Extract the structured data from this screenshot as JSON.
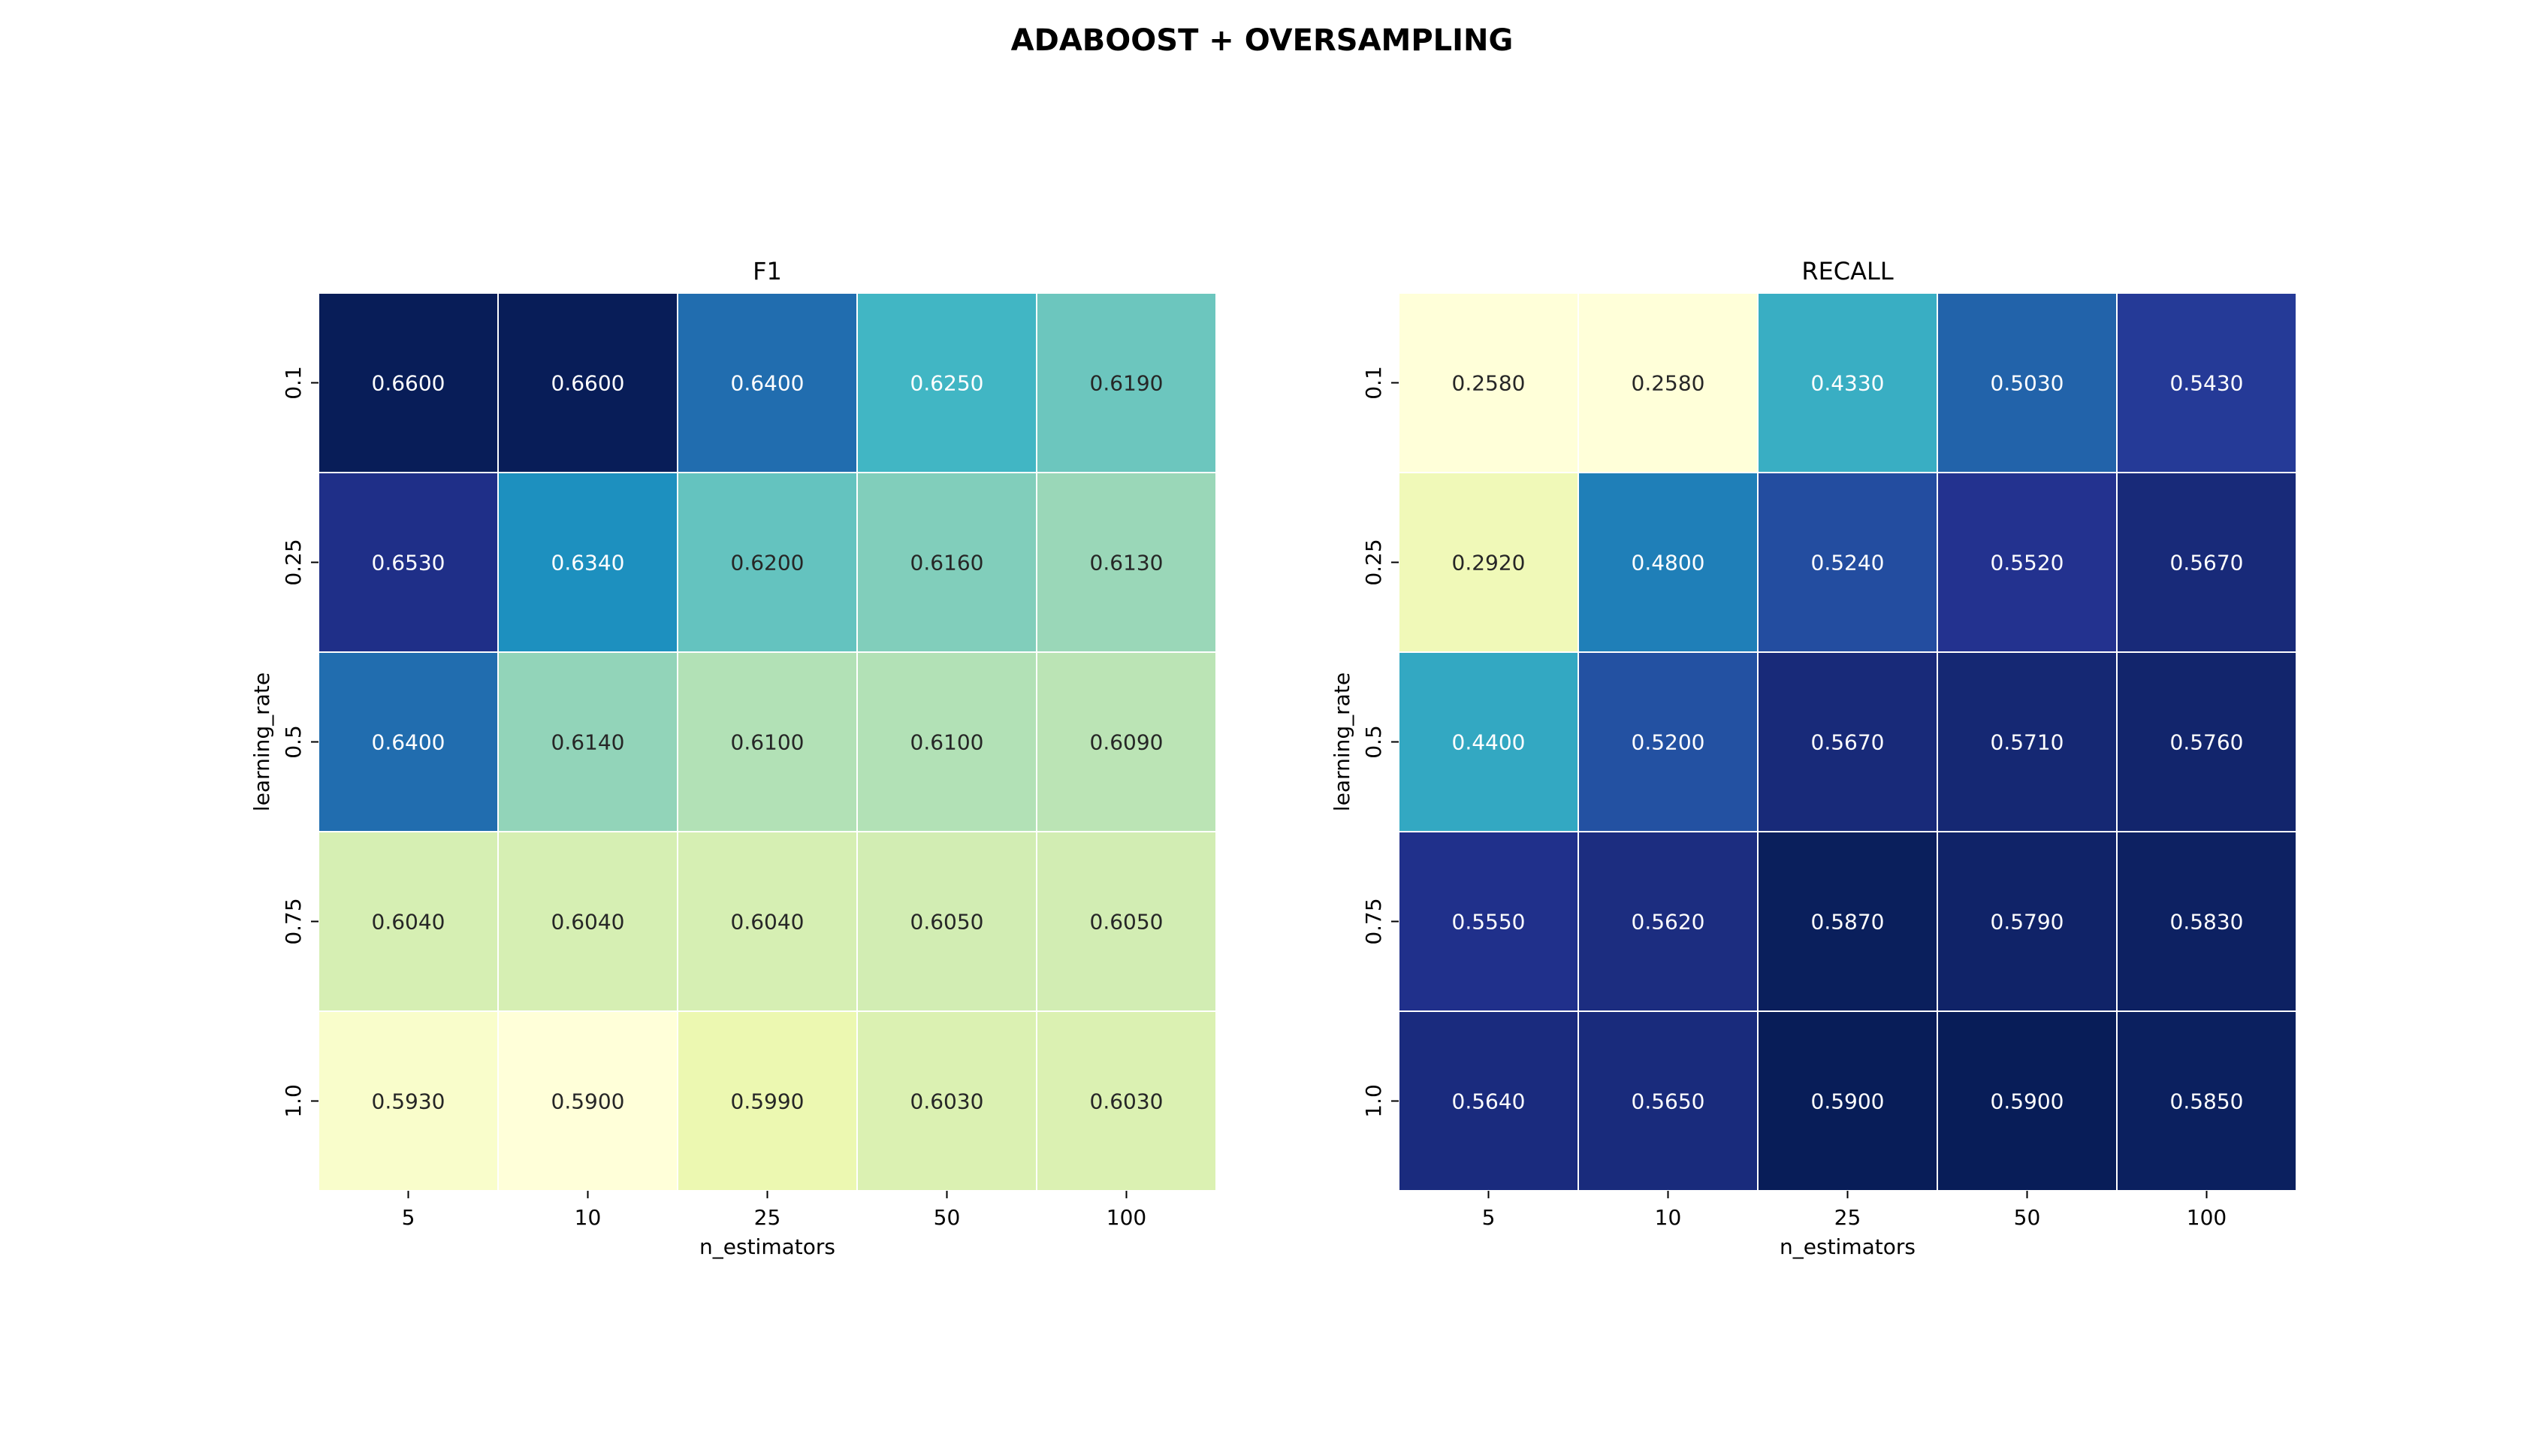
{
  "title": "ADABOOST + OVERSAMPLING",
  "colormap": "YlGnBu",
  "colormap_stops": [
    "#ffffd9",
    "#edf8b1",
    "#c7e9b4",
    "#7fcdbb",
    "#41b6c4",
    "#1d91c0",
    "#225ea8",
    "#253494",
    "#081d58"
  ],
  "chart_data": [
    {
      "type": "heatmap",
      "title": "F1",
      "xlabel": "n_estimators",
      "ylabel": "learning_rate",
      "x_categories": [
        "5",
        "10",
        "25",
        "50",
        "100"
      ],
      "y_categories": [
        "0.1",
        "0.25",
        "0.5",
        "0.75",
        "1.0"
      ],
      "values": [
        [
          0.66,
          0.66,
          0.64,
          0.625,
          0.619
        ],
        [
          0.653,
          0.634,
          0.62,
          0.616,
          0.613
        ],
        [
          0.64,
          0.614,
          0.61,
          0.61,
          0.609
        ],
        [
          0.604,
          0.604,
          0.604,
          0.605,
          0.605
        ],
        [
          0.593,
          0.59,
          0.599,
          0.603,
          0.603
        ]
      ],
      "value_format": "0.0000",
      "colorbar": false
    },
    {
      "type": "heatmap",
      "title": "RECALL",
      "xlabel": "n_estimators",
      "ylabel": "learning_rate",
      "x_categories": [
        "5",
        "10",
        "25",
        "50",
        "100"
      ],
      "y_categories": [
        "0.1",
        "0.25",
        "0.5",
        "0.75",
        "1.0"
      ],
      "values": [
        [
          0.258,
          0.258,
          0.433,
          0.503,
          0.543
        ],
        [
          0.292,
          0.48,
          0.524,
          0.552,
          0.567
        ],
        [
          0.44,
          0.52,
          0.567,
          0.571,
          0.576
        ],
        [
          0.555,
          0.562,
          0.587,
          0.579,
          0.583
        ],
        [
          0.564,
          0.565,
          0.59,
          0.59,
          0.585
        ]
      ],
      "value_format": "0.0000",
      "colorbar": false
    }
  ]
}
